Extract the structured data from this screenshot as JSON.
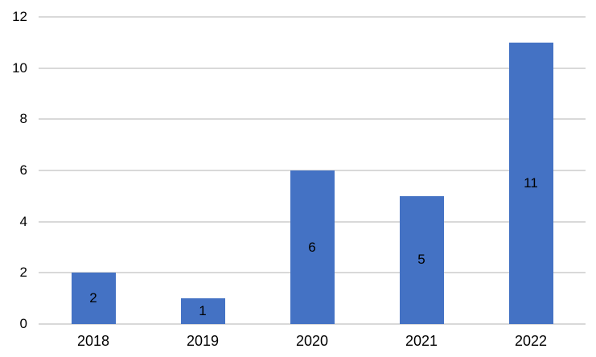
{
  "chart_data": {
    "type": "bar",
    "title": "",
    "xlabel": "",
    "ylabel": "",
    "categories": [
      "2018",
      "2019",
      "2020",
      "2021",
      "2022"
    ],
    "values": [
      2,
      1,
      6,
      5,
      11
    ],
    "data_labels": [
      "2",
      "1",
      "6",
      "5",
      "11"
    ],
    "ylim": [
      0,
      12
    ],
    "ytick_interval": 2,
    "ytick_labels": [
      "0",
      "2",
      "4",
      "6",
      "8",
      "10",
      "12"
    ],
    "grid": "horizontal",
    "legend_position": "none",
    "colors": {
      "bar": "#4472C4",
      "gridline": "#D9D9D9",
      "axis_text": "#000000",
      "data_label": "#000000",
      "background": "#FFFFFF"
    }
  }
}
